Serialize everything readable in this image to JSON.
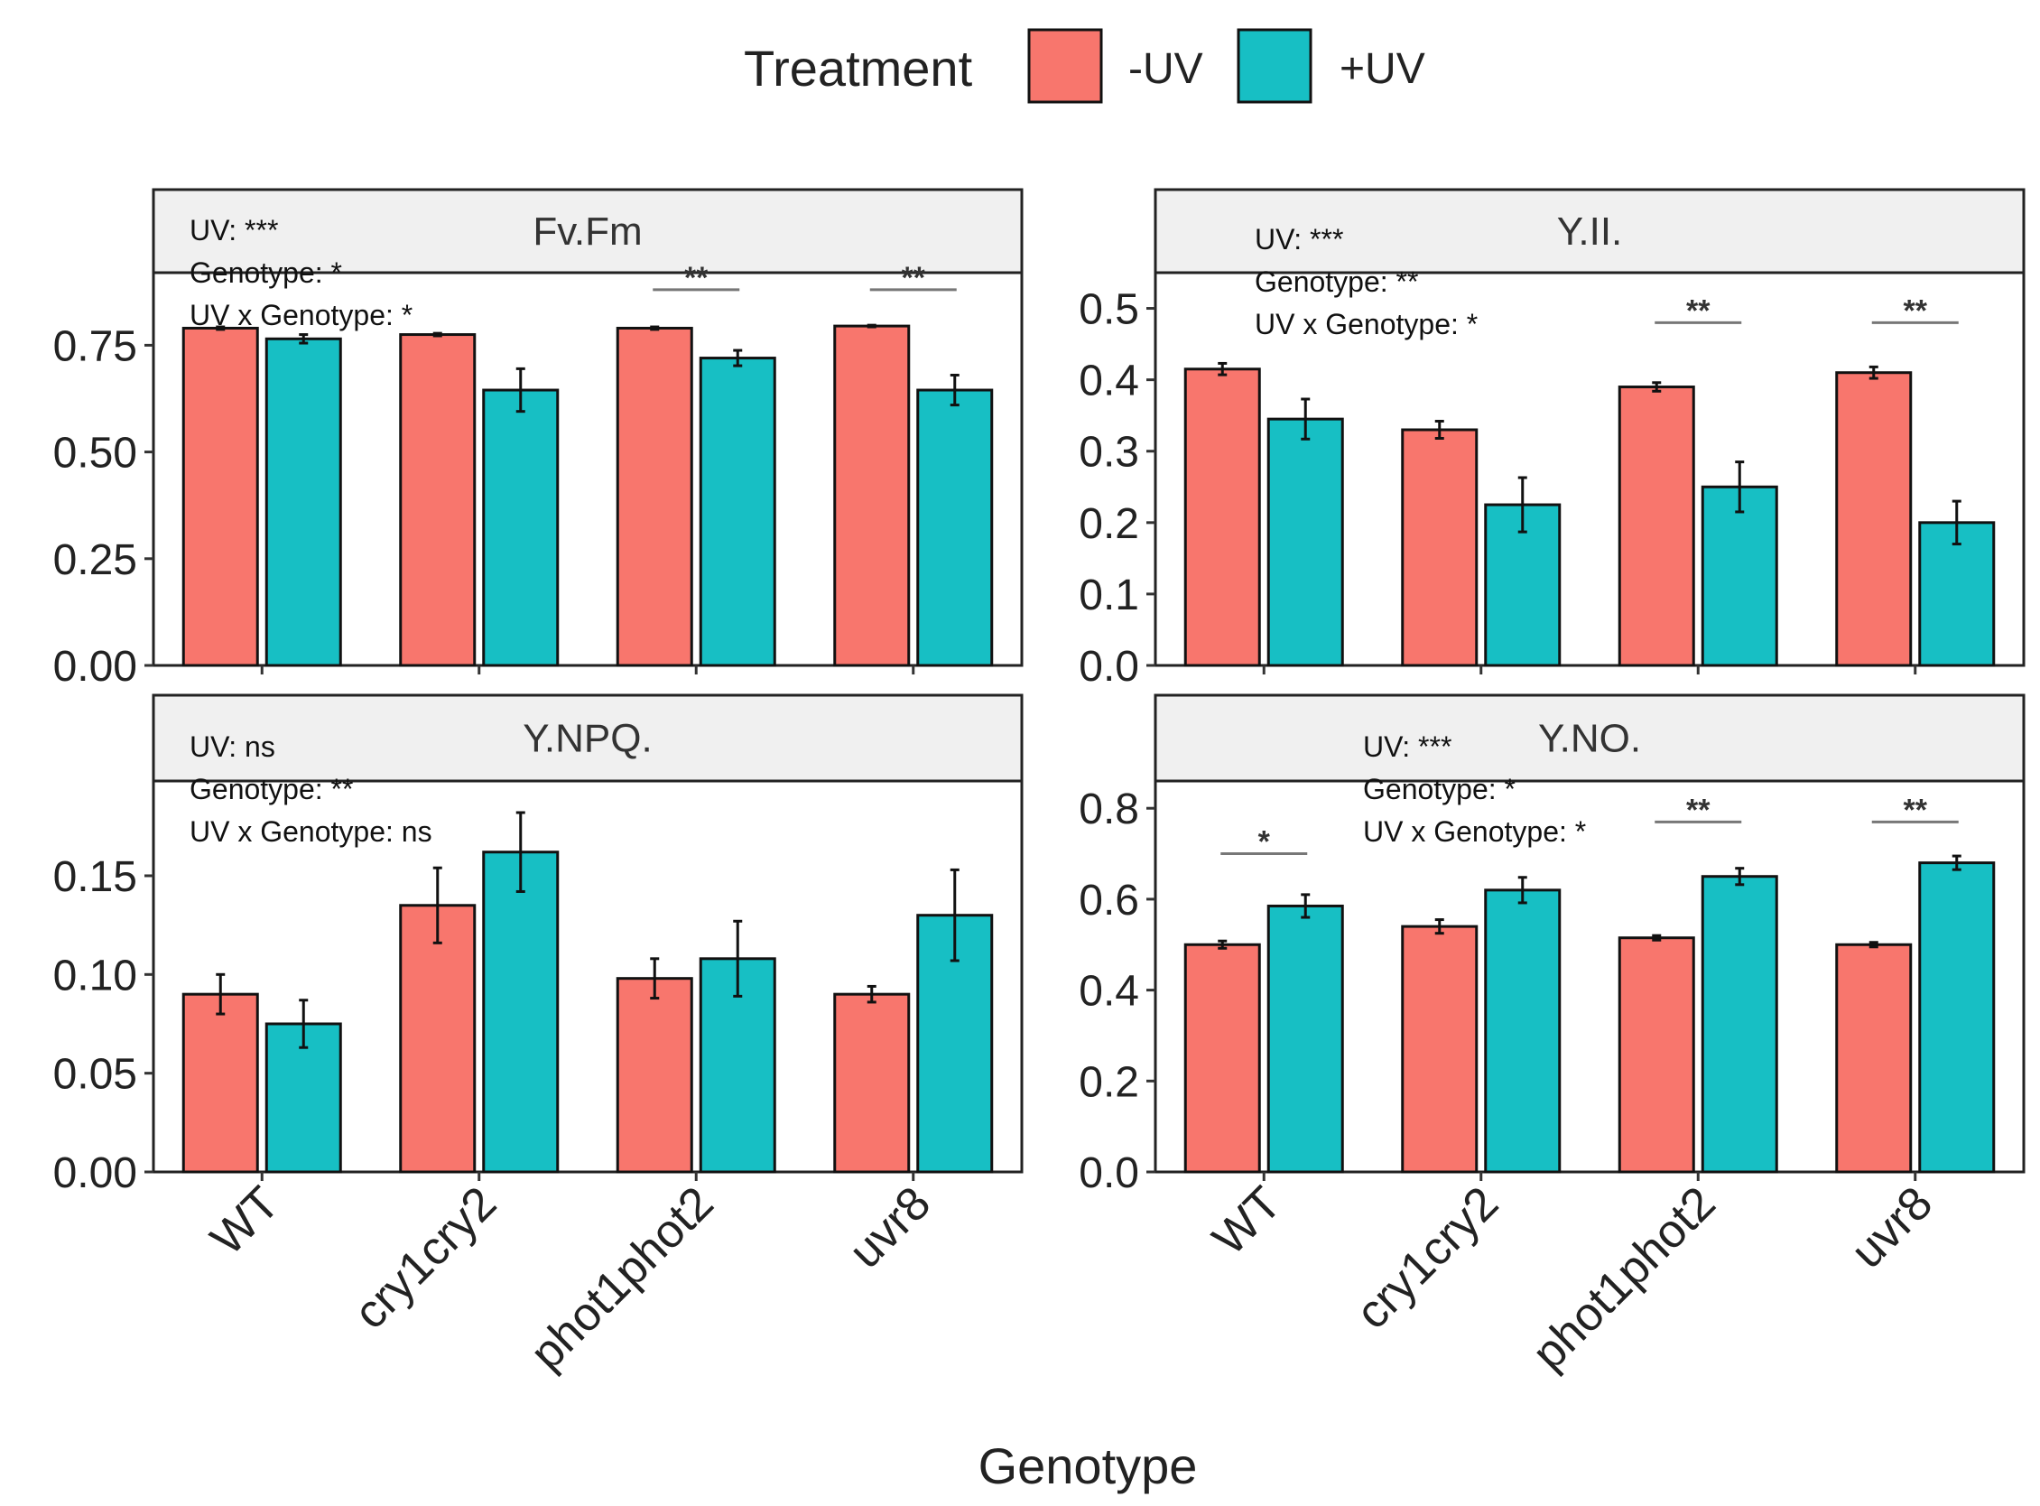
{
  "legend": {
    "title": "Treatment",
    "items": [
      {
        "label": "-UV",
        "color": "#F8766D"
      },
      {
        "label": "+UV",
        "color": "#17BFC4"
      }
    ]
  },
  "x_axis_title": "Genotype",
  "chart_data": [
    {
      "type": "bar",
      "title": "Fv.Fm",
      "xlabel": "Genotype",
      "ylabel": "",
      "categories": [
        "WT",
        "cry1cry2",
        "phot1phot2",
        "uvr8"
      ],
      "ylim": [
        0,
        0.92
      ],
      "yticks": [
        0,
        0.25,
        0.5,
        0.75
      ],
      "ytick_labels": [
        "0.00",
        "0.25",
        "0.50",
        "0.75"
      ],
      "series": [
        {
          "name": "-UV",
          "values": [
            0.79,
            0.775,
            0.79,
            0.795
          ],
          "errors": [
            0.003,
            0.003,
            0.003,
            0.002
          ]
        },
        {
          "name": "+UV",
          "values": [
            0.765,
            0.645,
            0.72,
            0.645
          ],
          "errors": [
            0.01,
            0.05,
            0.018,
            0.035
          ]
        }
      ],
      "stats": [
        "UV: ***",
        "Genotype: *",
        "UV x Genotype: *"
      ],
      "significance": [
        {
          "category": "phot1phot2",
          "label": "**",
          "y": 0.88
        },
        {
          "category": "uvr8",
          "label": "**",
          "y": 0.88
        }
      ]
    },
    {
      "type": "bar",
      "title": "Y.II.",
      "xlabel": "Genotype",
      "ylabel": "",
      "categories": [
        "WT",
        "cry1cry2",
        "phot1phot2",
        "uvr8"
      ],
      "ylim": [
        0,
        0.55
      ],
      "yticks": [
        0,
        0.1,
        0.2,
        0.3,
        0.4,
        0.5
      ],
      "ytick_labels": [
        "0.0",
        "0.1",
        "0.2",
        "0.3",
        "0.4",
        "0.5"
      ],
      "series": [
        {
          "name": "-UV",
          "values": [
            0.415,
            0.33,
            0.39,
            0.41
          ],
          "errors": [
            0.008,
            0.012,
            0.006,
            0.008
          ]
        },
        {
          "name": "+UV",
          "values": [
            0.345,
            0.225,
            0.25,
            0.2
          ],
          "errors": [
            0.028,
            0.038,
            0.035,
            0.03
          ]
        }
      ],
      "stats": [
        "UV: ***",
        "Genotype: **",
        "UV x Genotype: *"
      ],
      "significance": [
        {
          "category": "phot1phot2",
          "label": "**",
          "y": 0.48
        },
        {
          "category": "uvr8",
          "label": "**",
          "y": 0.48
        }
      ]
    },
    {
      "type": "bar",
      "title": "Y.NPQ.",
      "xlabel": "Genotype",
      "ylabel": "",
      "categories": [
        "WT",
        "cry1cry2",
        "phot1phot2",
        "uvr8"
      ],
      "ylim": [
        0,
        0.198
      ],
      "yticks": [
        0,
        0.05,
        0.1,
        0.15
      ],
      "ytick_labels": [
        "0.00",
        "0.05",
        "0.10",
        "0.15"
      ],
      "series": [
        {
          "name": "-UV",
          "values": [
            0.09,
            0.135,
            0.098,
            0.09
          ],
          "errors": [
            0.01,
            0.019,
            0.01,
            0.004
          ]
        },
        {
          "name": "+UV",
          "values": [
            0.075,
            0.162,
            0.108,
            0.13
          ],
          "errors": [
            0.012,
            0.02,
            0.019,
            0.023
          ]
        }
      ],
      "stats": [
        "UV: ns",
        "Genotype: **",
        "UV x Genotype: ns"
      ],
      "significance": []
    },
    {
      "type": "bar",
      "title": "Y.NO.",
      "xlabel": "Genotype",
      "ylabel": "",
      "categories": [
        "WT",
        "cry1cry2",
        "phot1phot2",
        "uvr8"
      ],
      "ylim": [
        0,
        0.86
      ],
      "yticks": [
        0,
        0.2,
        0.4,
        0.6,
        0.8
      ],
      "ytick_labels": [
        "0.0",
        "0.2",
        "0.4",
        "0.6",
        "0.8"
      ],
      "series": [
        {
          "name": "-UV",
          "values": [
            0.5,
            0.54,
            0.515,
            0.5
          ],
          "errors": [
            0.008,
            0.015,
            0.005,
            0.005
          ]
        },
        {
          "name": "+UV",
          "values": [
            0.585,
            0.62,
            0.65,
            0.68
          ],
          "errors": [
            0.025,
            0.028,
            0.018,
            0.015
          ]
        }
      ],
      "stats": [
        "UV: ***",
        "Genotype: *",
        "UV x Genotype: *"
      ],
      "significance": [
        {
          "category": "WT",
          "label": "*",
          "y": 0.7
        },
        {
          "category": "phot1phot2",
          "label": "**",
          "y": 0.77
        },
        {
          "category": "uvr8",
          "label": "**",
          "y": 0.77
        }
      ]
    }
  ]
}
